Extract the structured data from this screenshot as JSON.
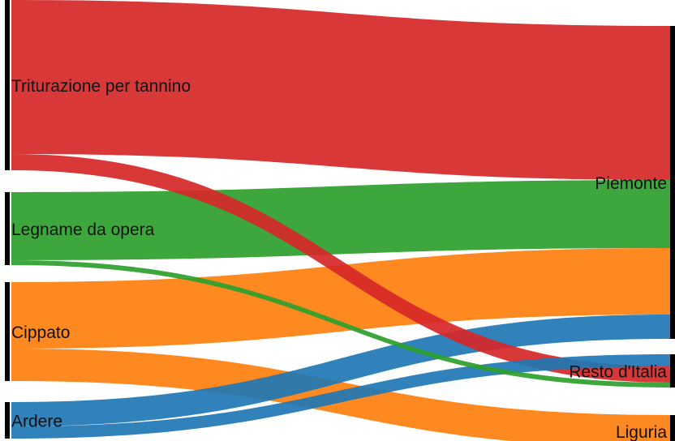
{
  "chart_data": {
    "type": "sankey",
    "sources": [
      {
        "name": "Triturazione per tannino",
        "color": "#d62728"
      },
      {
        "name": "Legname da opera",
        "color": "#2ca02c"
      },
      {
        "name": "Cippato",
        "color": "#ff7f0e"
      },
      {
        "name": "Ardere",
        "color": "#1f77b4"
      }
    ],
    "targets": [
      {
        "name": "Piemonte"
      },
      {
        "name": "Resto d'Italia"
      },
      {
        "name": "Liguria"
      }
    ],
    "links": [
      {
        "source": "Triturazione per tannino",
        "target": "Piemonte",
        "value": 190
      },
      {
        "source": "Triturazione per tannino",
        "target": "Resto d'Italia",
        "value": 20
      },
      {
        "source": "Legname da opera",
        "target": "Piemonte",
        "value": 84
      },
      {
        "source": "Legname da opera",
        "target": "Resto d'Italia",
        "value": 6
      },
      {
        "source": "Cippato",
        "target": "Piemonte",
        "value": 82
      },
      {
        "source": "Cippato",
        "target": "Liguria",
        "value": 40
      },
      {
        "source": "Ardere",
        "target": "Piemonte",
        "value": 30
      },
      {
        "source": "Ardere",
        "target": "Resto d'Italia",
        "value": 15
      }
    ]
  }
}
